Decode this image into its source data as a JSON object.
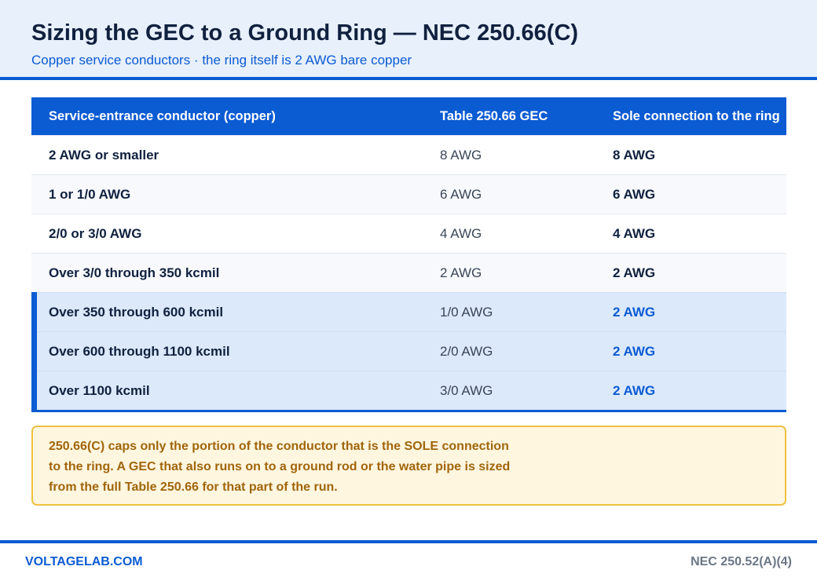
{
  "header": {
    "title": "Sizing the GEC to a Ground Ring — NEC 250.66(C)",
    "subtitle": "Copper service conductors · the ring itself is 2 AWG bare copper"
  },
  "table": {
    "columns": [
      "Service-entrance conductor (copper)",
      "Table 250.66 GEC",
      "Sole connection to the ring"
    ],
    "rows": [
      {
        "conductor": "2 AWG or smaller",
        "table_gec": "8 AWG",
        "sole": "8 AWG",
        "highlight": false
      },
      {
        "conductor": "1 or 1/0 AWG",
        "table_gec": "6 AWG",
        "sole": "6 AWG",
        "highlight": false
      },
      {
        "conductor": "2/0 or 3/0 AWG",
        "table_gec": "4 AWG",
        "sole": "4 AWG",
        "highlight": false
      },
      {
        "conductor": "Over 3/0 through 350 kcmil",
        "table_gec": "2 AWG",
        "sole": "2 AWG",
        "highlight": false
      },
      {
        "conductor": "Over 350 through 600 kcmil",
        "table_gec": "1/0 AWG",
        "sole": "2 AWG",
        "highlight": true
      },
      {
        "conductor": "Over 600 through 1100 kcmil",
        "table_gec": "2/0 AWG",
        "sole": "2 AWG",
        "highlight": true
      },
      {
        "conductor": "Over 1100 kcmil",
        "table_gec": "3/0 AWG",
        "sole": "2 AWG",
        "highlight": true
      }
    ]
  },
  "note": {
    "lines": [
      "250.66(C) caps only the portion of the conductor that is the SOLE connection",
      "to the ring. A GEC that also runs on to a ground rod or the water pipe is sized",
      "from the full Table 250.66 for that part of the run."
    ]
  },
  "footer": {
    "brand": "VOLTAGELAB.COM",
    "reference": "NEC 250.52(A)(4)"
  },
  "colors": {
    "accent": "#0b5bd3",
    "highlight_row": "#dce9fb",
    "note_bg": "#fff6e0",
    "note_border": "#f0c040",
    "note_text": "#a0650a"
  }
}
